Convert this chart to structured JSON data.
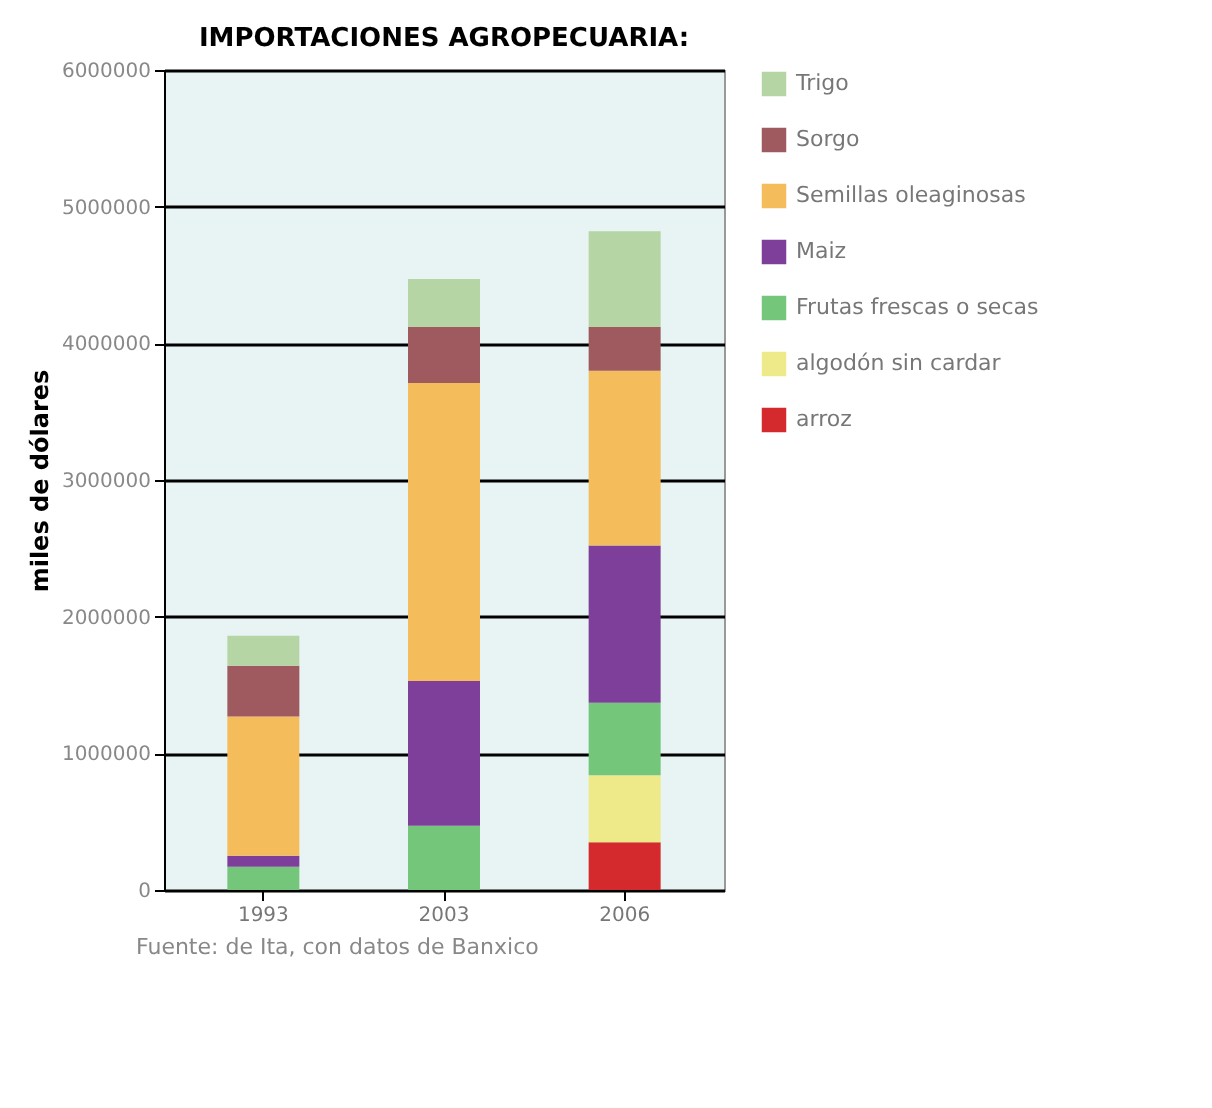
{
  "chart_data": {
    "type": "bar",
    "title": "IMPORTACIONES AGROPECUARIA:",
    "ylabel": "miles de dólares",
    "annotations": [
      "Fuente: de Ita, con datos de Banxico"
    ],
    "categories": [
      "1993",
      "2003",
      "2006"
    ],
    "stacked": true,
    "series": [
      {
        "name": "arroz",
        "color": "#d42a2e",
        "values": [
          null,
          null,
          350000
        ]
      },
      {
        "name": "algodón sin cardar",
        "color": "#eeea8a",
        "values": [
          null,
          null,
          490000
        ]
      },
      {
        "name": "Frutas frescas o secas",
        "color": "#74c67a",
        "values": [
          170000,
          470000,
          530000
        ]
      },
      {
        "name": "Maiz",
        "color": "#7e3f9a",
        "values": [
          80000,
          1060000,
          1150000
        ]
      },
      {
        "name": "Semillas oleaginosas",
        "color": "#f4bc5a",
        "values": [
          1020000,
          2180000,
          1280000
        ]
      },
      {
        "name": "Sorgo",
        "color": "#9e5a5e",
        "values": [
          370000,
          410000,
          320000
        ]
      },
      {
        "name": "Trigo",
        "color": "#b5d6a4",
        "values": [
          220000,
          350000,
          700000
        ]
      }
    ],
    "ylim": [
      0,
      6000000
    ],
    "yticks": [
      0,
      1000000,
      2000000,
      3000000,
      4000000,
      5000000,
      6000000
    ],
    "grid": "y",
    "legend": "right"
  }
}
